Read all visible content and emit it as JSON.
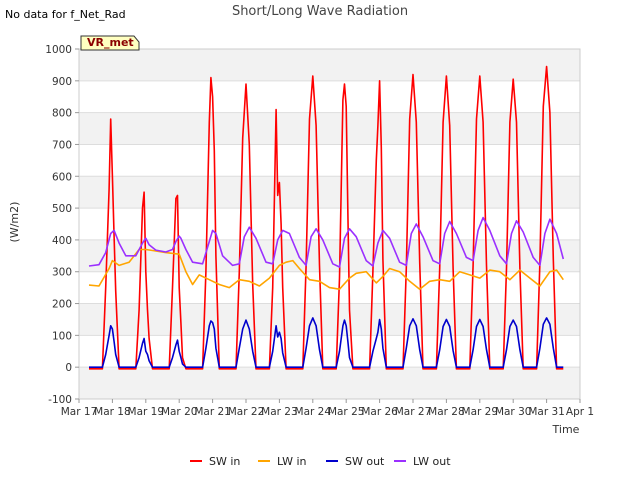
{
  "page": {
    "nodata_text": "No data for f_Net_Rad",
    "badge_text": "VR_met"
  },
  "chart_data": {
    "type": "line",
    "title": "Short/Long Wave Radiation",
    "xlabel": "Time",
    "ylabel": "(W/m2)",
    "ylim": [
      -100,
      1000
    ],
    "xlim": [
      0,
      15
    ],
    "yticks": [
      -100,
      0,
      100,
      200,
      300,
      400,
      500,
      600,
      700,
      800,
      900,
      1000
    ],
    "xticks": [
      0,
      1,
      2,
      3,
      4,
      5,
      6,
      7,
      8,
      9,
      10,
      11,
      12,
      13,
      14,
      15
    ],
    "xtick_labels": [
      "Mar 17",
      "Mar 18",
      "Mar 19",
      "Mar 20",
      "Mar 21",
      "Mar 22",
      "Mar 23",
      "Mar 24",
      "Mar 25",
      "Mar 26",
      "Mar 27",
      "Mar 28",
      "Mar 29",
      "Mar 30",
      "Mar 31",
      "Apr 1"
    ],
    "grid": true,
    "legend_position": "bottom",
    "series": [
      {
        "name": "SW in",
        "color": "#ff0000",
        "x": [
          0.3,
          0.7,
          0.8,
          0.9,
          0.95,
          1.0,
          1.05,
          1.1,
          1.2,
          1.3,
          1.7,
          1.8,
          1.9,
          1.95,
          2.0,
          2.05,
          2.1,
          2.2,
          2.3,
          2.7,
          2.8,
          2.9,
          2.95,
          3.0,
          3.05,
          3.1,
          3.2,
          3.3,
          3.7,
          3.8,
          3.9,
          3.95,
          4.0,
          4.05,
          4.1,
          4.2,
          4.3,
          4.7,
          4.8,
          4.9,
          5.0,
          5.1,
          5.2,
          5.3,
          5.7,
          5.8,
          5.9,
          5.95,
          6.0,
          6.05,
          6.1,
          6.2,
          6.3,
          6.7,
          6.8,
          6.9,
          7.0,
          7.1,
          7.2,
          7.3,
          7.7,
          7.8,
          7.9,
          7.95,
          8.0,
          8.05,
          8.1,
          8.2,
          8.3,
          8.7,
          8.8,
          8.9,
          8.95,
          9.0,
          9.05,
          9.1,
          9.2,
          9.3,
          9.7,
          9.8,
          9.9,
          10.0,
          10.1,
          10.2,
          10.3,
          10.7,
          10.8,
          10.9,
          11.0,
          11.1,
          11.2,
          11.3,
          11.7,
          11.8,
          11.9,
          12.0,
          12.1,
          12.2,
          12.3,
          12.7,
          12.8,
          12.9,
          13.0,
          13.1,
          13.2,
          13.3,
          13.7,
          13.8,
          13.9,
          14.0,
          14.1,
          14.2,
          14.3,
          14.5
        ],
        "y": [
          -5,
          -5,
          250,
          560,
          780,
          600,
          410,
          240,
          -5,
          -5,
          -5,
          180,
          500,
          550,
          300,
          180,
          90,
          -5,
          -5,
          -5,
          250,
          530,
          540,
          250,
          140,
          30,
          -5,
          -5,
          -5,
          300,
          770,
          910,
          850,
          680,
          350,
          -5,
          -5,
          -5,
          300,
          720,
          890,
          700,
          260,
          -5,
          -5,
          250,
          810,
          540,
          580,
          450,
          250,
          -5,
          -5,
          -5,
          320,
          780,
          915,
          760,
          320,
          -5,
          -5,
          280,
          840,
          890,
          820,
          480,
          180,
          -5,
          -5,
          -5,
          300,
          650,
          760,
          900,
          690,
          340,
          -5,
          -5,
          -5,
          310,
          780,
          920,
          770,
          330,
          -5,
          -5,
          310,
          770,
          915,
          760,
          310,
          -5,
          -5,
          320,
          780,
          915,
          770,
          320,
          -5,
          -5,
          310,
          770,
          905,
          770,
          310,
          -5,
          -5,
          330,
          820,
          945,
          800,
          340,
          -5,
          -5
        ]
      },
      {
        "name": "LW in",
        "color": "#ffa500",
        "x": [
          0.3,
          0.6,
          0.9,
          1.0,
          1.2,
          1.5,
          1.8,
          2.0,
          2.3,
          2.6,
          3.0,
          3.2,
          3.4,
          3.6,
          3.9,
          4.2,
          4.5,
          4.8,
          5.1,
          5.4,
          5.7,
          6.0,
          6.2,
          6.4,
          6.6,
          6.9,
          7.2,
          7.5,
          7.8,
          8.1,
          8.3,
          8.6,
          8.9,
          9.1,
          9.3,
          9.6,
          9.9,
          10.2,
          10.5,
          10.8,
          11.1,
          11.4,
          11.7,
          12.0,
          12.3,
          12.6,
          12.9,
          13.2,
          13.5,
          13.8,
          14.1,
          14.3,
          14.5
        ],
        "y": [
          258,
          255,
          310,
          335,
          320,
          330,
          370,
          370,
          365,
          360,
          355,
          300,
          260,
          290,
          275,
          260,
          250,
          275,
          270,
          255,
          280,
          320,
          330,
          335,
          310,
          275,
          270,
          250,
          245,
          280,
          295,
          300,
          265,
          285,
          310,
          300,
          270,
          245,
          270,
          275,
          270,
          300,
          290,
          280,
          305,
          300,
          275,
          305,
          280,
          255,
          300,
          305,
          275
        ]
      },
      {
        "name": "SW out",
        "color": "#0000cc",
        "x": [
          0.3,
          0.7,
          0.8,
          0.9,
          0.95,
          1.0,
          1.05,
          1.1,
          1.2,
          1.3,
          1.7,
          1.8,
          1.9,
          1.95,
          2.0,
          2.05,
          2.1,
          2.2,
          2.3,
          2.7,
          2.8,
          2.9,
          2.95,
          3.0,
          3.05,
          3.1,
          3.2,
          3.3,
          3.7,
          3.8,
          3.9,
          3.95,
          4.0,
          4.05,
          4.1,
          4.2,
          4.3,
          4.7,
          4.8,
          4.9,
          5.0,
          5.1,
          5.2,
          5.3,
          5.7,
          5.8,
          5.9,
          5.95,
          6.0,
          6.05,
          6.1,
          6.2,
          6.3,
          6.7,
          6.8,
          6.9,
          7.0,
          7.1,
          7.2,
          7.3,
          7.7,
          7.8,
          7.9,
          7.95,
          8.0,
          8.05,
          8.1,
          8.2,
          8.3,
          8.7,
          8.8,
          8.9,
          8.95,
          9.0,
          9.05,
          9.1,
          9.2,
          9.3,
          9.7,
          9.8,
          9.9,
          10.0,
          10.1,
          10.2,
          10.3,
          10.7,
          10.8,
          10.9,
          11.0,
          11.1,
          11.2,
          11.3,
          11.7,
          11.8,
          11.9,
          12.0,
          12.1,
          12.2,
          12.3,
          12.7,
          12.8,
          12.9,
          13.0,
          13.1,
          13.2,
          13.3,
          13.7,
          13.8,
          13.9,
          14.0,
          14.1,
          14.2,
          14.3,
          14.5
        ],
        "y": [
          0,
          0,
          40,
          100,
          130,
          120,
          80,
          40,
          0,
          0,
          0,
          30,
          75,
          90,
          50,
          40,
          20,
          0,
          0,
          0,
          30,
          70,
          85,
          50,
          30,
          10,
          0,
          0,
          0,
          60,
          130,
          145,
          140,
          120,
          60,
          0,
          0,
          0,
          60,
          120,
          148,
          120,
          50,
          0,
          0,
          50,
          130,
          95,
          110,
          90,
          45,
          0,
          0,
          0,
          60,
          130,
          155,
          130,
          55,
          0,
          0,
          50,
          130,
          148,
          130,
          80,
          30,
          0,
          0,
          0,
          50,
          90,
          110,
          150,
          120,
          60,
          0,
          0,
          0,
          60,
          130,
          152,
          130,
          55,
          0,
          0,
          55,
          128,
          150,
          128,
          52,
          0,
          0,
          55,
          128,
          150,
          128,
          55,
          0,
          0,
          55,
          128,
          148,
          128,
          55,
          0,
          0,
          60,
          135,
          155,
          135,
          60,
          0,
          0
        ]
      },
      {
        "name": "LW out",
        "color": "#9b30ff",
        "x": [
          0.3,
          0.6,
          0.8,
          0.95,
          1.05,
          1.2,
          1.4,
          1.7,
          1.9,
          2.0,
          2.1,
          2.3,
          2.6,
          2.8,
          2.9,
          3.0,
          3.05,
          3.2,
          3.4,
          3.7,
          3.9,
          4.0,
          4.1,
          4.3,
          4.6,
          4.8,
          4.95,
          5.1,
          5.3,
          5.6,
          5.8,
          5.95,
          6.1,
          6.3,
          6.6,
          6.8,
          6.95,
          7.1,
          7.3,
          7.6,
          7.8,
          7.95,
          8.1,
          8.3,
          8.6,
          8.8,
          8.95,
          9.1,
          9.3,
          9.6,
          9.8,
          9.95,
          10.1,
          10.3,
          10.6,
          10.8,
          10.95,
          11.1,
          11.3,
          11.6,
          11.8,
          11.95,
          12.1,
          12.3,
          12.6,
          12.8,
          12.95,
          13.1,
          13.3,
          13.6,
          13.8,
          13.95,
          14.1,
          14.3,
          14.5
        ],
        "y": [
          318,
          322,
          360,
          420,
          430,
          390,
          350,
          350,
          390,
          405,
          385,
          368,
          362,
          370,
          395,
          412,
          405,
          370,
          330,
          325,
          395,
          430,
          420,
          350,
          320,
          325,
          410,
          440,
          405,
          330,
          325,
          400,
          430,
          420,
          345,
          320,
          410,
          435,
          400,
          325,
          315,
          405,
          435,
          410,
          335,
          318,
          390,
          430,
          405,
          330,
          320,
          420,
          450,
          410,
          335,
          325,
          420,
          458,
          420,
          345,
          335,
          430,
          470,
          430,
          350,
          325,
          420,
          460,
          425,
          345,
          320,
          420,
          465,
          420,
          340
        ]
      }
    ]
  }
}
